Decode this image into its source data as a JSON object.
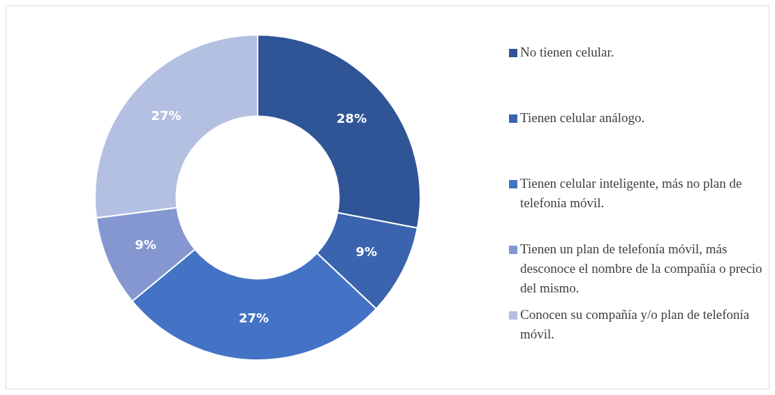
{
  "chart_data": {
    "type": "donut",
    "categories": [
      "No tienen celular.",
      "Tienen celular análogo.",
      "Tienen celular inteligente, más no plan de telefonía móvil.",
      "Tienen un plan de telefonía móvil, más desconoce el nombre de la compañía o precio del mismo.",
      "Conocen su compañía y/o plan de telefonía móvil."
    ],
    "values": [
      28,
      9,
      27,
      9,
      27
    ],
    "colors": [
      "#2f5597",
      "#3a64ad",
      "#4472c4",
      "#8497d0",
      "#b4c0e2"
    ],
    "value_labels": [
      "28%",
      "9%",
      "27%",
      "9%",
      "27%"
    ],
    "legend": "right"
  }
}
